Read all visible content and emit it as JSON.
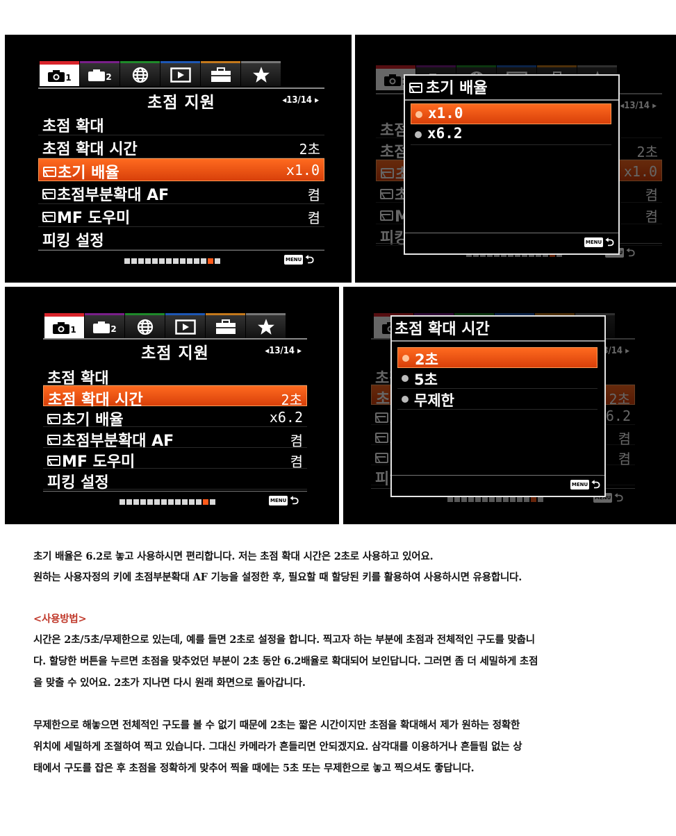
{
  "menu_a": {
    "title": "초점 지원",
    "page": "◂13/14 ▸",
    "rows": [
      {
        "label": "초점 확대",
        "value": "",
        "icon": false
      },
      {
        "label": "초점 확대 시간",
        "value": "2초",
        "icon": false
      },
      {
        "label": "초기 배율",
        "value": "x1.0",
        "icon": true
      },
      {
        "label": "초점부분확대 AF",
        "value": "켬",
        "icon": true
      },
      {
        "label": "MF 도우미",
        "value": "켬",
        "icon": true
      },
      {
        "label": "피킹 설정",
        "value": "",
        "icon": false
      }
    ],
    "selected_index": 2,
    "tab_labels": [
      "1",
      "2"
    ],
    "menu_key": "MENU"
  },
  "popup_b": {
    "title": "초기 배율",
    "options": [
      "x1.0",
      "x6.2"
    ],
    "selected_index": 0,
    "menu_key": "MENU"
  },
  "menu_c": {
    "title": "초점 지원",
    "page": "◂13/14 ▸",
    "rows": [
      {
        "label": "초점 확대",
        "value": "",
        "icon": false
      },
      {
        "label": "초점 확대 시간",
        "value": "2초",
        "icon": false
      },
      {
        "label": "초기 배율",
        "value": "x6.2",
        "icon": true
      },
      {
        "label": "초점부분확대 AF",
        "value": "켬",
        "icon": true
      },
      {
        "label": "MF 도우미",
        "value": "켬",
        "icon": true
      },
      {
        "label": "피킹 설정",
        "value": "",
        "icon": false
      }
    ],
    "selected_index": 1,
    "tab_labels": [
      "1",
      "2"
    ],
    "menu_key": "MENU"
  },
  "popup_d": {
    "title": "초점 확대 시간",
    "options": [
      "2초",
      "5초",
      "무제한"
    ],
    "selected_index": 0,
    "menu_key": "MENU"
  },
  "page_dots": {
    "total": 14,
    "current": 13
  },
  "article": {
    "p1_line1": "초기 배율은 6.2로 놓고 사용하시면 편리합니다.  저는 초점 확대 시간은 2초로 사용하고 있어요.",
    "p1_line2": "원하는 사용자정의 키에 초점부분확대 AF 기능을 설정한 후, 필요할 때 할당된 키를 활용하여 사용하시면 유용합니다.",
    "heading": "<사용방법>",
    "p2_line1": "시간은 2초/5초/무제한으로 있는데, 예를 들면 2초로 설정을 합니다. 찍고자 하는 부분에 초점과 전체적인 구도를 맞춥니",
    "p2_line2": "다. 할당한 버튼을 누르면 초점을 맞추었던 부분이 2초 동안 6.2배율로 확대되어 보인답니다. 그러면 좀 더 세밀하게 초점",
    "p2_line3": "을 맞출 수 있어요.  2초가 지나면 다시 원래 화면으로 돌아갑니다.",
    "p3_line1": "무제한으로 해놓으면 전체적인 구도를 볼 수 없기 때문에 2초는 짧은 시간이지만 초점을 확대해서 제가 원하는 정확한",
    "p3_line2": "위치에 세밀하게 조절하여 찍고 있습니다. 그대신 카메라가 흔들리면 안되겠지요. 삼각대를 이용하거나 흔들림 없는 상",
    "p3_line3": "태에서 구도를 잡은 후 초점을 정확하게 맞추어 찍을 때에는 5초 또는 무제한으로 놓고 찍으셔도 좋답니다."
  }
}
